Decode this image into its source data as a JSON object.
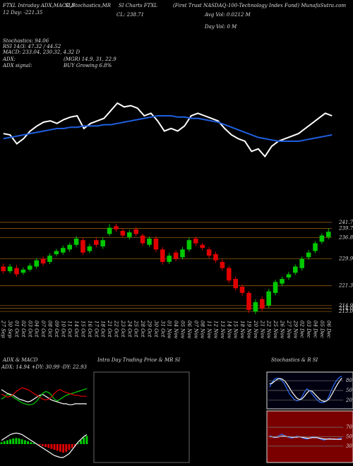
{
  "chart_data": [
    {
      "type": "line",
      "ylim": [
        0,
        100
      ],
      "annotations": [
        "FTXL Intraday ADX,MACD,B",
        "SI,Stochastics,MR",
        "SI Charts FTXL",
        "(First Trust NASDAQ-100-Technology Index Fund) MunafaSutra.com",
        "12 Day: -221.35",
        "CL: 238.71",
        "Avg Vol: 0.0212 M",
        "Day Vol: 0 M",
        "Stochastics: 94.06",
        "RSI 14/3: 47.32 / 44.52",
        "MACD: 233.04, 230.32, 4.32 D",
        "ADX:",
        "(MGR) 14.9, 31, 22.9",
        "ADX signal:",
        "BUY Growing 6.8%",
        "Intra Day Trading Price & MR SI"
      ],
      "series": [
        {
          "color": "#ffffff",
          "values": [
            56,
            55,
            48,
            52,
            58,
            62,
            65,
            66,
            64,
            67,
            69,
            70,
            60,
            64,
            66,
            68,
            74,
            80,
            77,
            78,
            76,
            70,
            72,
            66,
            58,
            60,
            58,
            62,
            70,
            72,
            70,
            68,
            66,
            60,
            55,
            52,
            50,
            42,
            44,
            38,
            46,
            50,
            52,
            54,
            56,
            60,
            64,
            68,
            72,
            70
          ]
        },
        {
          "color": "#1f5fe0",
          "values": [
            52,
            53,
            54,
            55,
            56,
            57,
            58,
            59,
            60,
            60,
            61,
            61,
            62,
            62,
            62,
            63,
            63,
            64,
            65,
            66,
            67,
            68,
            69,
            70,
            70,
            70,
            69,
            69,
            68,
            68,
            67,
            66,
            65,
            63,
            61,
            59,
            57,
            55,
            53,
            52,
            51,
            50,
            50,
            50,
            50,
            51,
            52,
            53,
            54,
            55
          ]
        }
      ]
    },
    {
      "type": "candlestick",
      "ylim": [
        211,
        244
      ],
      "up_color": "#00c800",
      "down_color": "#e00000",
      "level_color": "#a86a10",
      "yticks": [
        241.76,
        239.79,
        236.85,
        229.99,
        221.3,
        214.91,
        214.01,
        213.03
      ],
      "categories": [
        "27 Sep",
        "30 Sep",
        "01 Oct",
        "02 Oct",
        "03 Oct",
        "04 Oct",
        "07 Oct",
        "08 Oct",
        "09 Oct",
        "10 Oct",
        "11 Oct",
        "14 Oct",
        "15 Oct",
        "16 Oct",
        "17 Oct",
        "18 Oct",
        "21 Oct",
        "22 Oct",
        "23 Oct",
        "24 Oct",
        "25 Oct",
        "28 Oct",
        "29 Oct",
        "30 Oct",
        "31 Oct",
        "01 Nov",
        "04 Nov",
        "05 Nov",
        "06 Nov",
        "07 Nov",
        "08 Nov",
        "11 Nov",
        "12 Nov",
        "13 Nov",
        "14 Nov",
        "15 Nov",
        "18 Nov",
        "19 Nov",
        "20 Nov",
        "21 Nov",
        "22 Nov",
        "25 Nov",
        "26 Nov",
        "27 Nov",
        "29 Nov",
        "02 Dec",
        "03 Dec",
        "04 Dec",
        "05 Dec",
        "06 Dec"
      ],
      "open": [
        227.5,
        226.0,
        227.0,
        225.5,
        226.5,
        227.5,
        230.0,
        229.0,
        231.5,
        232.0,
        233.0,
        234.5,
        236.0,
        232.5,
        236.0,
        234.0,
        238.0,
        240.5,
        239.0,
        237.0,
        239.5,
        237.5,
        234.5,
        236.5,
        233.0,
        229.0,
        232.0,
        230.5,
        233.0,
        236.5,
        234.5,
        233.0,
        231.5,
        229.0,
        227.0,
        223.5,
        221.0,
        219.0,
        213.0,
        217.0,
        215.0,
        219.0,
        222.0,
        224.0,
        225.5,
        227.0,
        230.5,
        232.5,
        235.5,
        237.0
      ],
      "high": [
        228.5,
        228.3,
        228.0,
        227.2,
        228.6,
        230.2,
        230.8,
        231.8,
        233.2,
        234.3,
        235.2,
        237.3,
        236.8,
        234.8,
        236.8,
        236.9,
        241.2,
        241.3,
        239.8,
        239.3,
        240.2,
        238.1,
        237.2,
        237.3,
        233.8,
        231.9,
        232.7,
        233.8,
        236.8,
        237.2,
        235.2,
        233.8,
        232.3,
        229.8,
        227.7,
        224.2,
        221.8,
        219.6,
        216.9,
        217.8,
        220.3,
        223.2,
        224.2,
        225.8,
        228.2,
        230.7,
        232.8,
        235.7,
        238.2,
        239.79
      ],
      "low": [
        225.2,
        225.3,
        224.2,
        224.8,
        225.9,
        226.8,
        227.7,
        228.3,
        230.8,
        231.3,
        232.2,
        233.8,
        231.2,
        231.8,
        233.7,
        233.2,
        237.3,
        238.7,
        236.8,
        236.2,
        237.2,
        234.2,
        233.8,
        232.2,
        228.1,
        228.3,
        229.2,
        229.8,
        232.3,
        234.2,
        232.7,
        230.2,
        228.7,
        226.2,
        222.1,
        219.7,
        218.1,
        212.6,
        212.2,
        213.1,
        214.2,
        218.2,
        221.2,
        223.2,
        224.8,
        226.2,
        229.7,
        231.8,
        234.8,
        236.3
      ],
      "close": [
        226.0,
        227.5,
        225.0,
        226.5,
        227.8,
        229.5,
        228.5,
        231.0,
        232.5,
        233.5,
        234.5,
        236.5,
        232.0,
        234.0,
        234.5,
        236.0,
        240.0,
        239.5,
        237.5,
        238.5,
        238.0,
        235.0,
        236.5,
        233.0,
        229.0,
        231.0,
        230.0,
        233.0,
        236.0,
        235.0,
        233.5,
        231.0,
        229.5,
        227.0,
        223.0,
        220.5,
        219.0,
        213.5,
        216.0,
        214.0,
        219.5,
        222.5,
        223.5,
        225.0,
        227.5,
        230.0,
        232.0,
        235.0,
        237.5,
        238.71
      ]
    },
    {
      "type": "line",
      "title": "ADX & MACD",
      "subtitle": "ADX: 14.94 +DY: 30.99 -DY: 22.93",
      "ylim": [
        0,
        50
      ],
      "series": [
        {
          "color": "#ffffff",
          "values": [
            30,
            28,
            26,
            25,
            24,
            22,
            20,
            19,
            18,
            17,
            18,
            20,
            22,
            24,
            25,
            23,
            21,
            19,
            18,
            17,
            16,
            15,
            15,
            14,
            14,
            15,
            15,
            15,
            15,
            14.94
          ]
        },
        {
          "color": "#00d000",
          "values": [
            20,
            22,
            25,
            24,
            22,
            20,
            18,
            16,
            15,
            14,
            14,
            15,
            18,
            22,
            26,
            28,
            27,
            24,
            20,
            18,
            20,
            22,
            24,
            25,
            26,
            27,
            28,
            29,
            30,
            30.99
          ]
        },
        {
          "color": "#e00000",
          "values": [
            25,
            24,
            22,
            23,
            25,
            28,
            30,
            32,
            31,
            30,
            28,
            26,
            24,
            22,
            20,
            19,
            20,
            22,
            26,
            29,
            30,
            28,
            27,
            26,
            25,
            24,
            24,
            23,
            23,
            22.93
          ]
        }
      ]
    },
    {
      "type": "bar",
      "ylim": [
        -10,
        10
      ],
      "up_color": "#00d000",
      "down_color": "#e00000",
      "values": [
        1,
        1.5,
        2,
        2.5,
        3,
        3.2,
        3,
        2.5,
        2,
        1.5,
        1,
        0.5,
        0,
        -0.5,
        -1,
        -1.5,
        -2,
        -2.5,
        -3,
        -3.5,
        -4,
        -4.5,
        -4,
        -3,
        -2,
        -1,
        0.5,
        2,
        3.5,
        4.32
      ],
      "series": [
        {
          "color": "#ffffff",
          "values": [
            2,
            3,
            4,
            5,
            5.5,
            5.8,
            5.5,
            5,
            4,
            3,
            2,
            1,
            0,
            -1,
            -2,
            -3,
            -4,
            -5,
            -6,
            -6.5,
            -7,
            -7,
            -6,
            -5,
            -3,
            -1,
            1,
            2.5,
            4,
            5
          ]
        }
      ]
    },
    {
      "type": "line",
      "title": "Stochastics & R SI",
      "ylim": [
        0,
        100
      ],
      "yticks": [
        20,
        50,
        80
      ],
      "series": [
        {
          "color": "#2a6cff",
          "values": [
            60,
            75,
            85,
            88,
            86,
            80,
            70,
            55,
            40,
            30,
            22,
            18,
            20,
            30,
            45,
            55,
            50,
            40,
            30,
            22,
            15,
            12,
            14,
            20,
            35,
            55,
            70,
            82,
            90,
            94.06
          ]
        },
        {
          "color": "#ffffff",
          "values": [
            70,
            72,
            78,
            84,
            87,
            85,
            80,
            70,
            58,
            45,
            35,
            26,
            22,
            24,
            32,
            42,
            50,
            48,
            40,
            32,
            24,
            18,
            16,
            18,
            25,
            38,
            52,
            66,
            78,
            88
          ]
        }
      ]
    },
    {
      "type": "line",
      "ylim": [
        0,
        100
      ],
      "yticks": [
        30,
        50,
        70
      ],
      "series": [
        {
          "color": "#2a6cff",
          "values": [
            52,
            50,
            48,
            50,
            53,
            55,
            52,
            50,
            48,
            47,
            49,
            51,
            50,
            48,
            46,
            45,
            47,
            49,
            50,
            48,
            46,
            44,
            43,
            45,
            46,
            45,
            44,
            45,
            46,
            47.32
          ]
        },
        {
          "color": "#ffffff",
          "values": [
            50,
            50,
            49,
            49,
            50,
            51,
            51,
            50,
            50,
            49,
            49,
            49,
            50,
            49,
            48,
            47,
            47,
            48,
            48,
            48,
            47,
            46,
            45,
            45,
            45,
            45,
            45,
            44.5,
            44.5,
            44.52
          ]
        }
      ]
    }
  ]
}
